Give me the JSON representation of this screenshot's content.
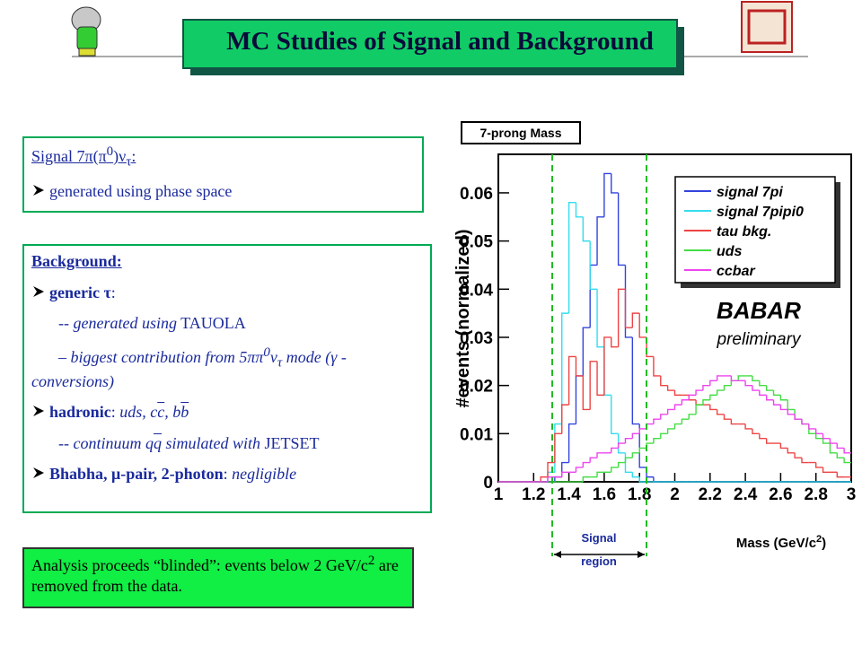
{
  "header": {
    "title": "MC Studies of Signal and Background"
  },
  "signal_box": {
    "heading": [
      "Signal 7π(π",
      "0",
      ")ν",
      "τ",
      ":"
    ],
    "bullet": "generated using phase space"
  },
  "background_box": {
    "heading": "Background:",
    "generic": [
      "generic τ",
      ":"
    ],
    "tauola": [
      "-- ",
      "generated using",
      " TAUOLA"
    ],
    "biggest": [
      "– biggest contribution from 5ππ",
      "0",
      "ν",
      "τ",
      " mode (γ - conversions)"
    ],
    "hadronic": [
      "hadronic",
      ": ",
      "uds, c",
      "c",
      ", b",
      "b"
    ],
    "continuum": [
      "-- ",
      "continuum q",
      "q",
      " simulated with",
      " JETSET"
    ],
    "bhabha": [
      "Bhabha, μ-pair, 2-photon",
      ": ",
      "negligible"
    ]
  },
  "analysis_box": {
    "text": [
      "Analysis proceeds “blinded”: events below 2 GeV/c",
      "2",
      " are removed from the data."
    ]
  },
  "chart_data": {
    "type": "histogram",
    "title": "7-prong Mass",
    "y_label": "#events (normalized)",
    "x_label": [
      "Mass (GeV/c",
      "2",
      ")"
    ],
    "experiment": "BABAR",
    "status": "preliminary",
    "signal_region": [
      "Signal",
      "region"
    ],
    "bins": [
      1.0,
      1.04,
      1.08,
      1.12,
      1.16,
      1.2,
      1.24,
      1.28,
      1.32,
      1.36,
      1.4,
      1.44,
      1.48,
      1.52,
      1.56,
      1.6,
      1.64,
      1.68,
      1.72,
      1.76,
      1.8,
      1.84,
      1.88,
      1.92,
      1.96,
      2.0,
      2.04,
      2.08,
      2.12,
      2.16,
      2.2,
      2.24,
      2.28,
      2.32,
      2.36,
      2.4,
      2.44,
      2.48,
      2.52,
      2.56,
      2.6,
      2.64,
      2.68,
      2.72,
      2.76,
      2.8,
      2.84,
      2.88,
      2.92,
      2.96,
      3.0
    ],
    "series": [
      {
        "name": "signal 7pi",
        "color": "#3344dd",
        "values": [
          0,
          0,
          0,
          0,
          0,
          0,
          0,
          0,
          0.001,
          0.004,
          0.012,
          0.022,
          0.032,
          0.045,
          0.055,
          0.064,
          0.06,
          0.045,
          0.03,
          0.012,
          0.003,
          0.001,
          0,
          0,
          0,
          0,
          0,
          0,
          0,
          0,
          0,
          0,
          0,
          0,
          0,
          0,
          0,
          0,
          0,
          0,
          0,
          0,
          0,
          0,
          0,
          0,
          0,
          0,
          0,
          0
        ]
      },
      {
        "name": "signal 7pipi0",
        "color": "#33ddee",
        "values": [
          0,
          0,
          0,
          0,
          0,
          0,
          0,
          0.002,
          0.012,
          0.035,
          0.058,
          0.055,
          0.05,
          0.04,
          0.028,
          0.018,
          0.01,
          0.006,
          0.002,
          0.001,
          0,
          0,
          0,
          0,
          0,
          0,
          0,
          0,
          0,
          0,
          0,
          0,
          0,
          0,
          0,
          0,
          0,
          0,
          0,
          0,
          0,
          0,
          0,
          0,
          0,
          0,
          0,
          0,
          0,
          0
        ]
      },
      {
        "name": "tau bkg.",
        "color": "#ee4444",
        "values": [
          0,
          0,
          0,
          0,
          0,
          0,
          0.001,
          0.004,
          0.01,
          0.016,
          0.026,
          0.022,
          0.015,
          0.025,
          0.018,
          0.03,
          0.028,
          0.04,
          0.032,
          0.035,
          0.03,
          0.026,
          0.022,
          0.02,
          0.019,
          0.018,
          0.018,
          0.017,
          0.016,
          0.016,
          0.015,
          0.014,
          0.013,
          0.012,
          0.012,
          0.011,
          0.01,
          0.009,
          0.008,
          0.008,
          0.007,
          0.006,
          0.005,
          0.004,
          0.004,
          0.003,
          0.002,
          0.002,
          0.001,
          0.001
        ]
      },
      {
        "name": "uds",
        "color": "#44dd44",
        "values": [
          0,
          0,
          0,
          0,
          0,
          0,
          0,
          0,
          0,
          0,
          0,
          0,
          0.001,
          0.001,
          0.002,
          0.002,
          0.003,
          0.004,
          0.005,
          0.006,
          0.007,
          0.008,
          0.009,
          0.01,
          0.011,
          0.012,
          0.013,
          0.014,
          0.016,
          0.017,
          0.018,
          0.019,
          0.02,
          0.021,
          0.022,
          0.022,
          0.021,
          0.02,
          0.019,
          0.018,
          0.017,
          0.015,
          0.013,
          0.012,
          0.01,
          0.009,
          0.008,
          0.006,
          0.005,
          0.004
        ]
      },
      {
        "name": "ccbar",
        "color": "#ee44ee",
        "values": [
          0,
          0,
          0,
          0,
          0,
          0,
          0,
          0.001,
          0.001,
          0.002,
          0.002,
          0.003,
          0.004,
          0.005,
          0.006,
          0.006,
          0.007,
          0.008,
          0.009,
          0.01,
          0.011,
          0.012,
          0.013,
          0.014,
          0.015,
          0.016,
          0.017,
          0.018,
          0.019,
          0.02,
          0.021,
          0.022,
          0.022,
          0.021,
          0.021,
          0.02,
          0.019,
          0.018,
          0.017,
          0.016,
          0.015,
          0.014,
          0.013,
          0.012,
          0.011,
          0.01,
          0.009,
          0.008,
          0.007,
          0.006
        ]
      }
    ],
    "xlim": [
      1,
      3
    ],
    "ylim": [
      0,
      0.068
    ],
    "xticks": [
      1,
      1.2,
      1.4,
      1.6,
      1.8,
      2,
      2.2,
      2.4,
      2.6,
      2.8,
      3
    ],
    "yticks": [
      0,
      0.01,
      0.02,
      0.03,
      0.04,
      0.05,
      0.06
    ]
  }
}
